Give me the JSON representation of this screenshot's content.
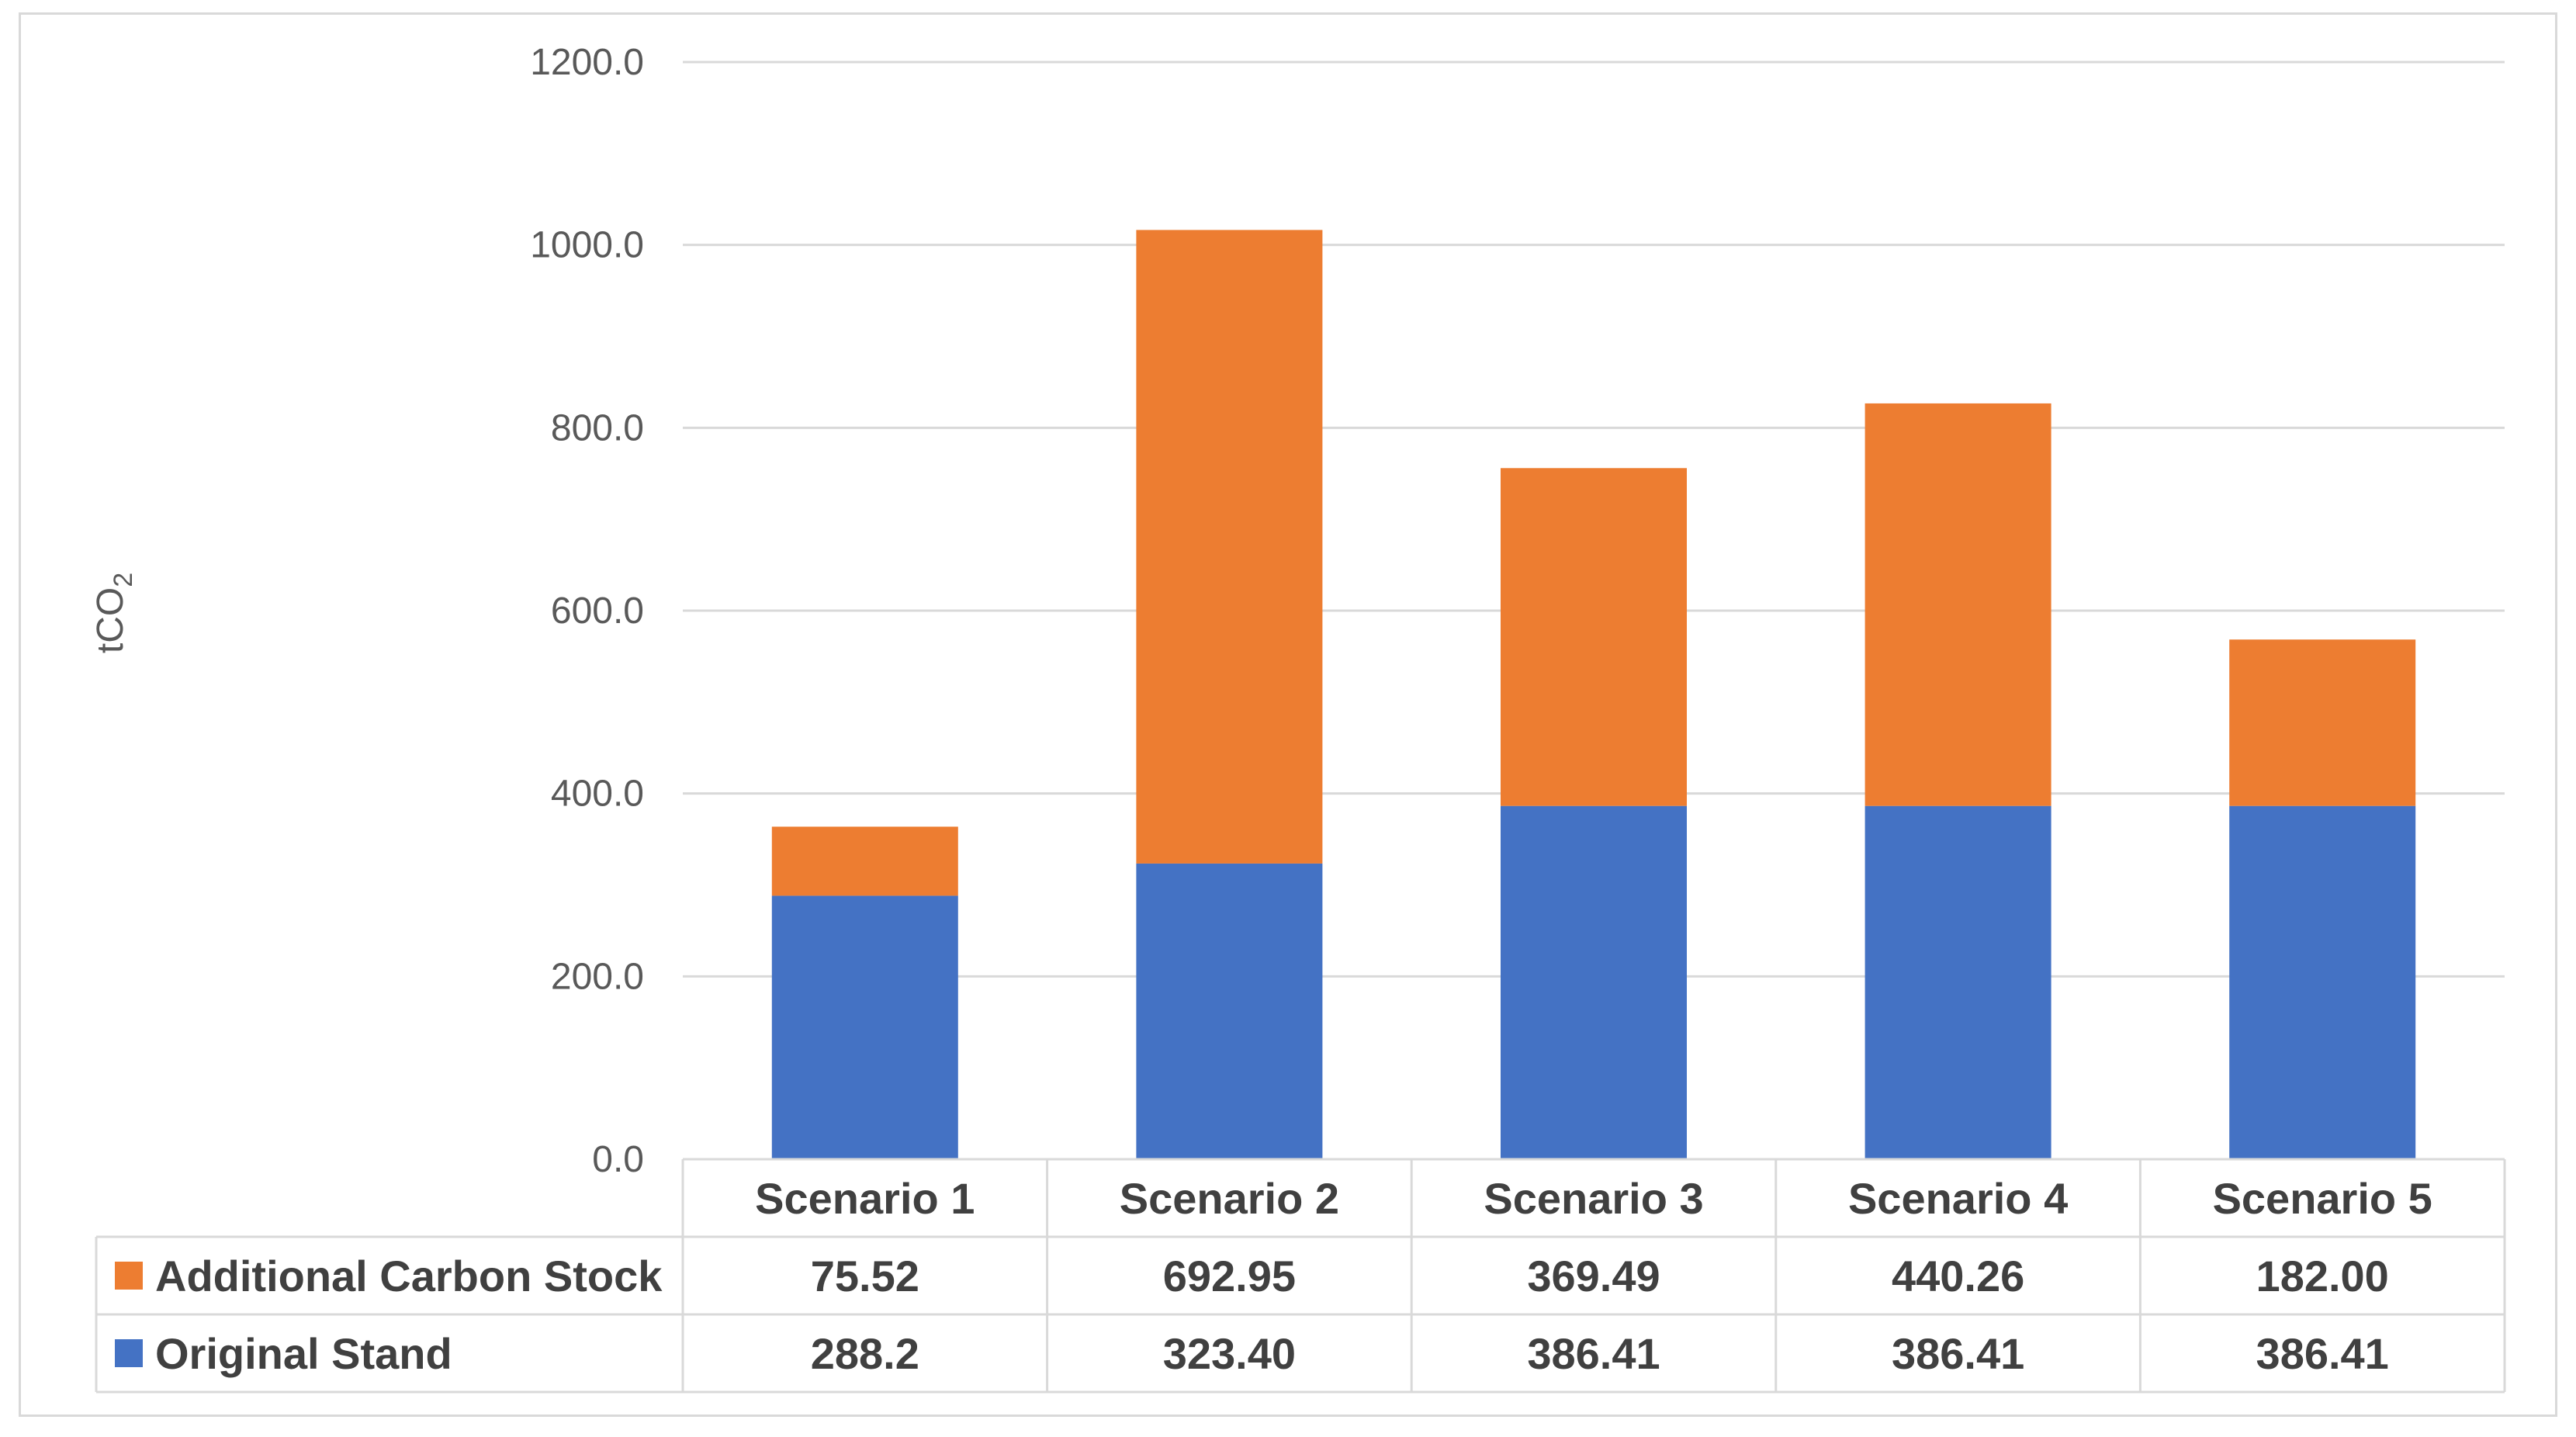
{
  "chart_data": {
    "type": "bar",
    "stacked": true,
    "title": "",
    "xlabel": "",
    "ylabel": "tCO",
    "ylabel_subscript": "2",
    "ylim": [
      0,
      1200
    ],
    "yticks": [
      0,
      200,
      400,
      600,
      800,
      1000,
      1200
    ],
    "ytick_labels": [
      "0.0",
      "200.0",
      "400.0",
      "600.0",
      "800.0",
      "1000.0",
      "1200.0"
    ],
    "grid": true,
    "categories": [
      "Scenario 1",
      "Scenario 2",
      "Scenario 3",
      "Scenario 4",
      "Scenario 5"
    ],
    "series": [
      {
        "name": "Original Stand",
        "color": "#4472C4",
        "values": [
          288.2,
          323.4,
          386.41,
          386.41,
          386.41
        ],
        "labels": [
          "288.2",
          "323.40",
          "386.41",
          "386.41",
          "386.41"
        ]
      },
      {
        "name": "Additional Carbon Stock",
        "color": "#ED7D31",
        "values": [
          75.52,
          692.95,
          369.49,
          440.26,
          182.0
        ],
        "labels": [
          "75.52",
          "692.95",
          "369.49",
          "440.26",
          "182.00"
        ]
      }
    ],
    "data_table": true,
    "table_row_order": [
      "Additional Carbon Stock",
      "Original Stand"
    ]
  }
}
